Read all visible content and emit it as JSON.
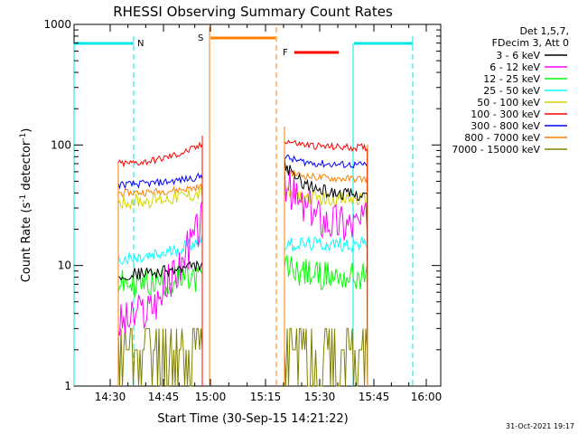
{
  "chart_data": {
    "type": "line",
    "title": "RHESSI Observing Summary Count Rates",
    "xlabel": "Start Time (30-Sep-15 14:21:22)",
    "ylabel_main": "Count Rate (s",
    "ylabel_sup1": "-1",
    "ylabel_mid": " detector",
    "ylabel_sup2": "-1",
    "ylabel_end": ")",
    "y_scale": "log",
    "ylim": [
      1,
      1000
    ],
    "x_ticks": [
      "14:30",
      "14:45",
      "15:00",
      "15:15",
      "15:30",
      "15:45",
      "16:00"
    ],
    "y_ticks": [
      "1",
      "10",
      "100",
      "1000"
    ],
    "legend_header": [
      "Det 1,5,7,",
      "FDecim 3, Att 0"
    ],
    "legend_position": "right-outside",
    "footer": "31-Oct-2021 19:17",
    "flags": [
      {
        "label": "N",
        "color": "#00e6e6"
      },
      {
        "label": "S",
        "color": "#ff7f00"
      },
      {
        "label": "F",
        "color": "#ff0000"
      }
    ],
    "series": [
      {
        "name": "3 - 6 keV",
        "color": "#000000",
        "seg1": [
          8.5,
          10
        ],
        "seg2": [
          70,
          38
        ]
      },
      {
        "name": "6 - 12 keV",
        "color": "#ff00ff",
        "seg1": [
          3.5,
          25
        ],
        "seg2": [
          50,
          22
        ]
      },
      {
        "name": "12 - 25 keV",
        "color": "#00ff00",
        "seg1": [
          7,
          8
        ],
        "seg2": [
          10,
          8
        ]
      },
      {
        "name": "25 - 50 keV",
        "color": "#00ffff",
        "seg1": [
          11,
          17
        ],
        "seg2": [
          15,
          15
        ]
      },
      {
        "name": "50 - 100 keV",
        "color": "#d4d400",
        "seg1": [
          34,
          40
        ],
        "seg2": [
          40,
          35
        ]
      },
      {
        "name": "100 - 300 keV",
        "color": "#ff0000",
        "seg1": [
          70,
          100
        ],
        "seg2": [
          110,
          95
        ]
      },
      {
        "name": "300 - 800 keV",
        "color": "#0000ff",
        "seg1": [
          47,
          55
        ],
        "seg2": [
          80,
          68
        ]
      },
      {
        "name": "800 - 7000 keV",
        "color": "#ff7f00",
        "seg1": [
          40,
          45
        ],
        "seg2": [
          62,
          52
        ]
      },
      {
        "name": "7000 - 15000 keV",
        "color": "#808000",
        "seg1": [
          2,
          2.5
        ],
        "seg2": [
          2,
          2.5
        ]
      }
    ]
  }
}
